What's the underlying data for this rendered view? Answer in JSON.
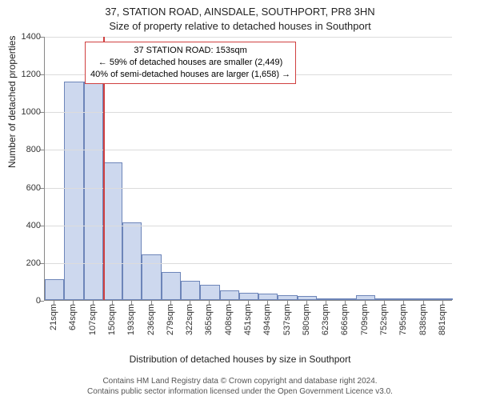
{
  "title": {
    "line1": "37, STATION ROAD, AINSDALE, SOUTHPORT, PR8 3HN",
    "line2": "Size of property relative to detached houses in Southport"
  },
  "axes": {
    "ylabel": "Number of detached properties",
    "xlabel": "Distribution of detached houses by size in Southport",
    "ymax": 1400,
    "ytick_step": 200,
    "yticks": [
      0,
      200,
      400,
      600,
      800,
      1000,
      1200,
      1400
    ],
    "grid_color": "#dcdcdc",
    "axis_color": "#888888"
  },
  "chart": {
    "type": "histogram",
    "bar_fill": "#cdd8ee",
    "bar_border": "#6d85b9",
    "background_color": "#ffffff",
    "categories": [
      "21sqm",
      "64sqm",
      "107sqm",
      "150sqm",
      "193sqm",
      "236sqm",
      "279sqm",
      "322sqm",
      "365sqm",
      "408sqm",
      "451sqm",
      "494sqm",
      "537sqm",
      "580sqm",
      "623sqm",
      "666sqm",
      "709sqm",
      "752sqm",
      "795sqm",
      "838sqm",
      "881sqm"
    ],
    "values": [
      110,
      1160,
      1160,
      730,
      410,
      240,
      150,
      100,
      80,
      50,
      40,
      35,
      25,
      20,
      10,
      8,
      25,
      5,
      4,
      4,
      3
    ]
  },
  "reference_line": {
    "bin_index_after": 3,
    "color": "#d04040"
  },
  "callout": {
    "border_color": "#d04040",
    "lines": [
      "37 STATION ROAD: 153sqm",
      "← 59% of detached houses are smaller (2,449)",
      "40% of semi-detached houses are larger (1,658) →"
    ]
  },
  "footer": {
    "line1": "Contains HM Land Registry data © Crown copyright and database right 2024.",
    "line2": "Contains public sector information licensed under the Open Government Licence v3.0."
  }
}
